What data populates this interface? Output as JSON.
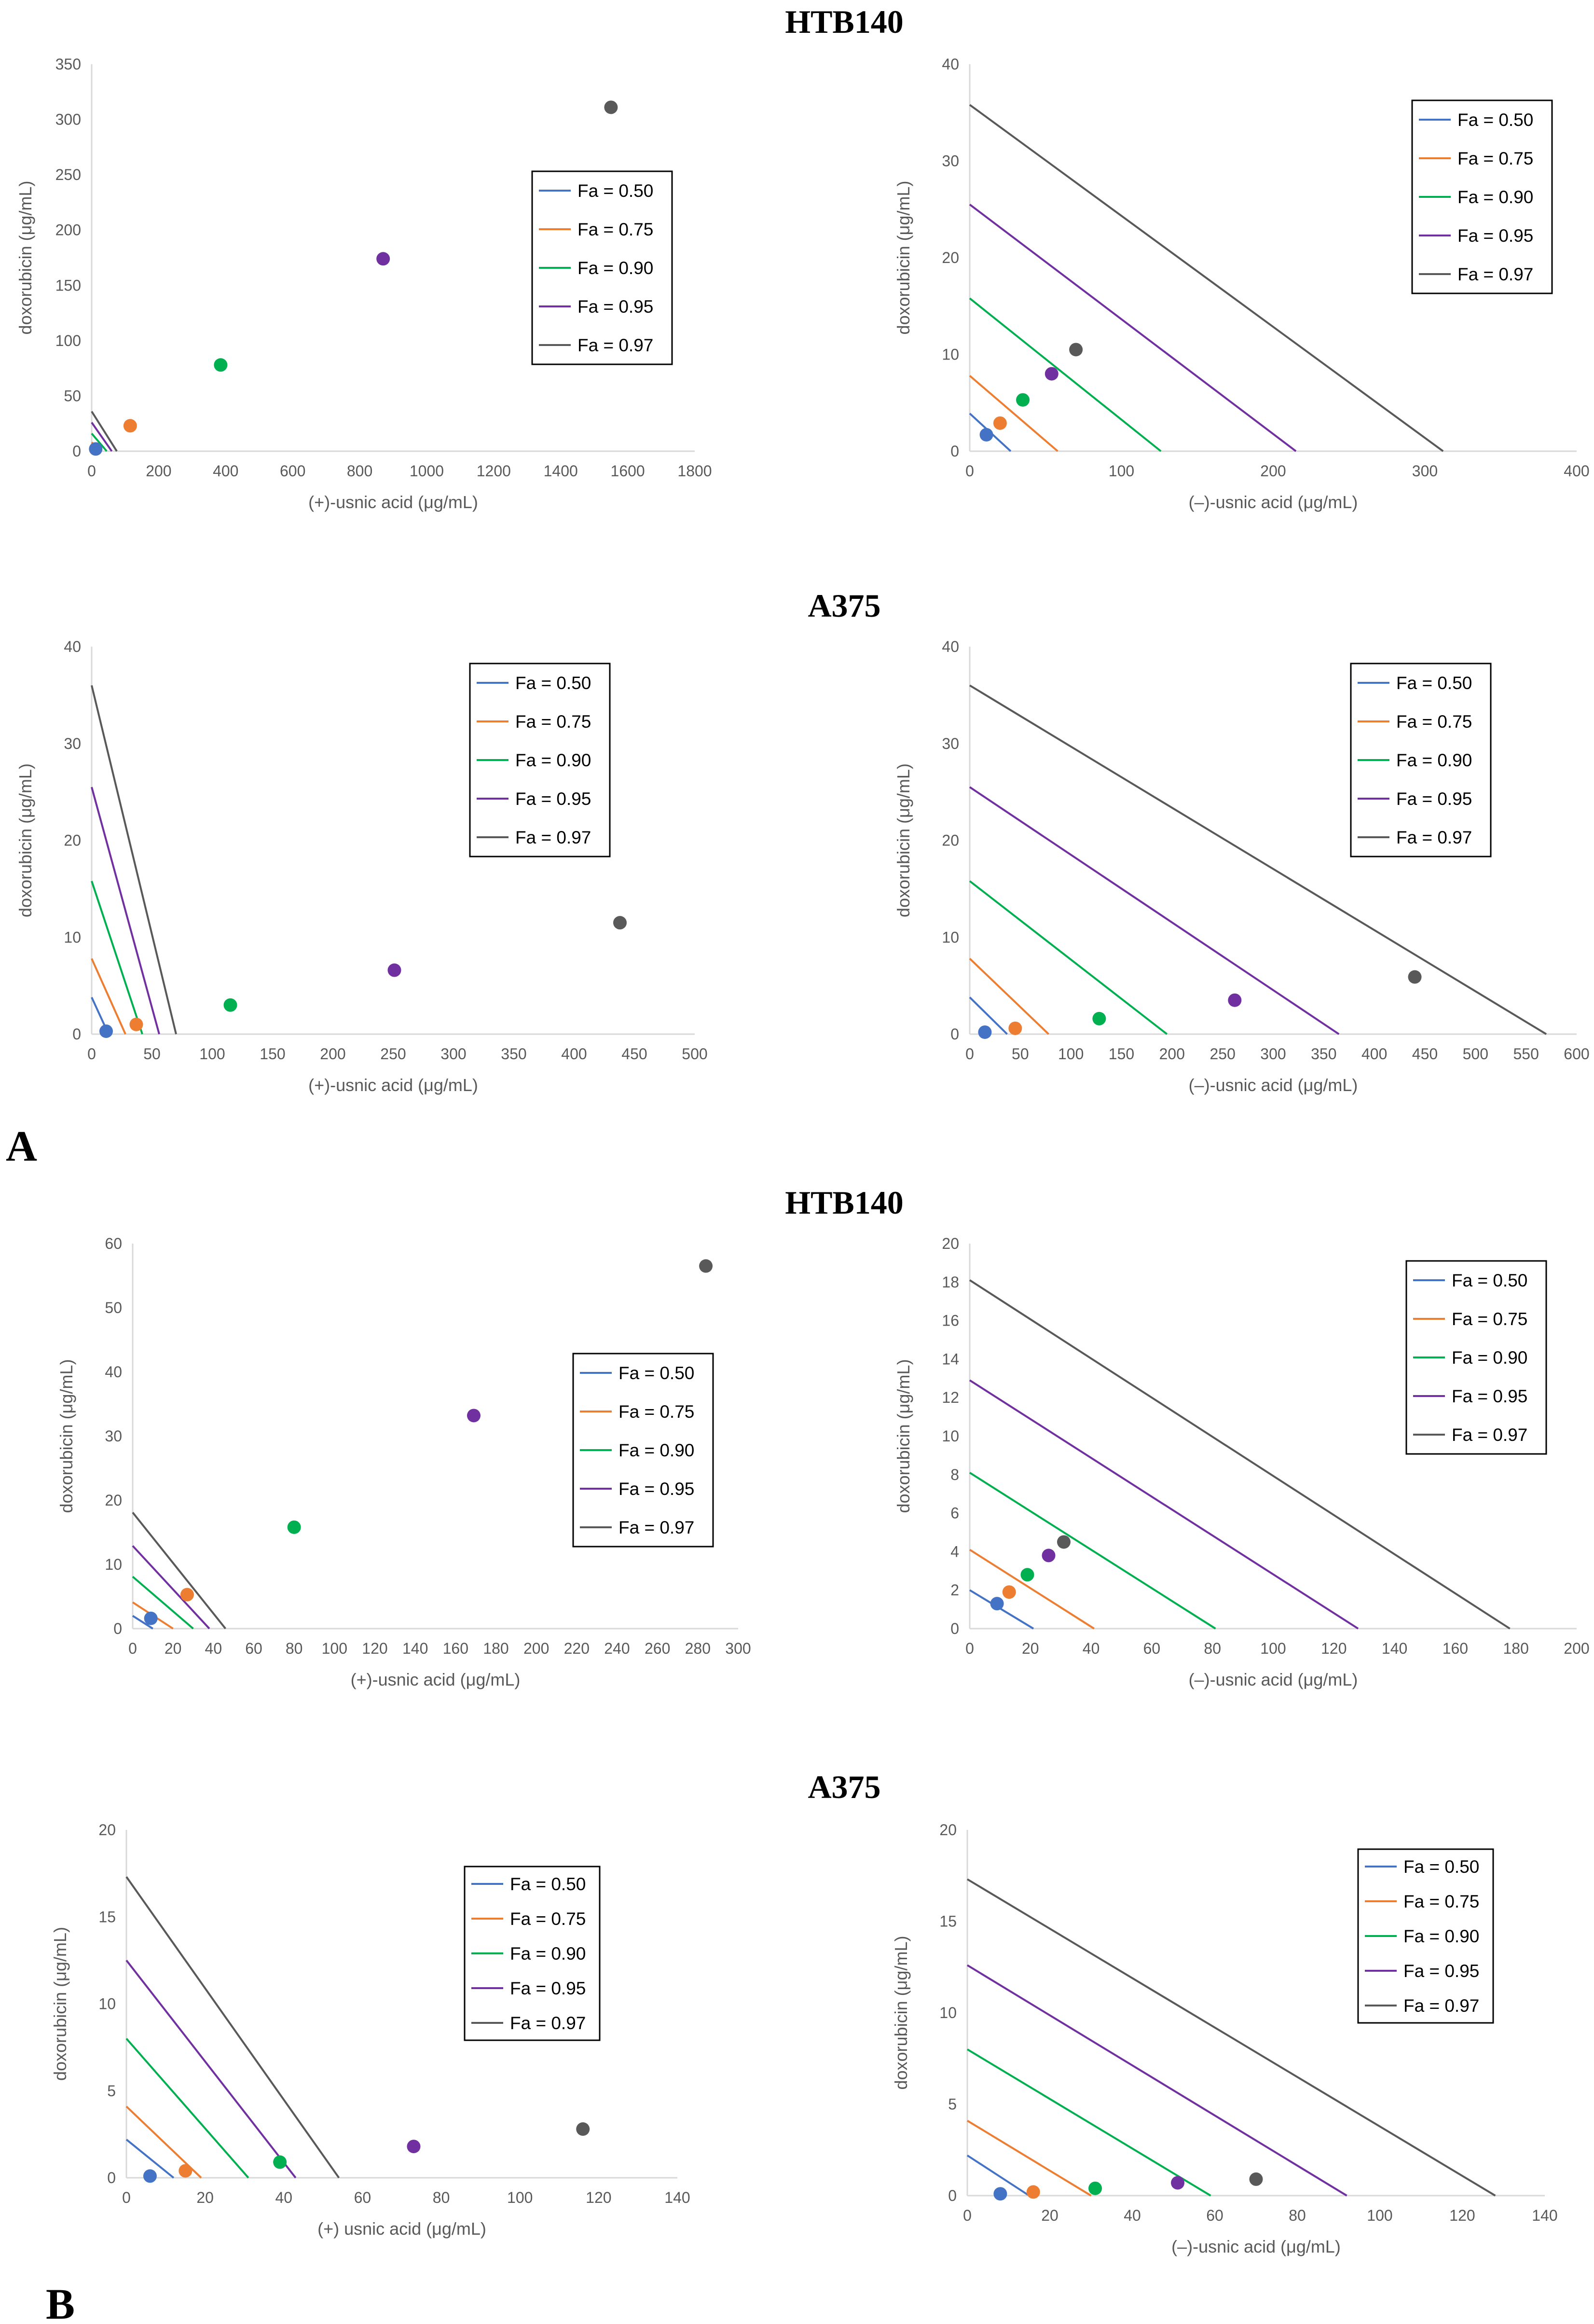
{
  "figure": {
    "titles": [
      "HTB140",
      "A375",
      "HTB140",
      "A375"
    ],
    "panel_labels": [
      "A",
      "B"
    ],
    "ylabel": "doxorubicin (μg/mL)"
  },
  "legend_labels": [
    "Fa = 0.50",
    "Fa = 0.75",
    "Fa = 0.90",
    "Fa = 0.95",
    "Fa = 0.97"
  ],
  "colors": {
    "fa050": "#4472C4",
    "fa075": "#ED7D31",
    "fa090": "#00B050",
    "fa095": "#7030A0",
    "fa097": "#595959",
    "axis": "#D9D9D9",
    "text": "#595959"
  },
  "chart_data": [
    {
      "type": "scatter",
      "title": "HTB140",
      "xlabel": "(+)-usnic acid (μg/mL)",
      "ylabel": "doxorubicin (μg/mL)",
      "xlim": [
        0,
        1800
      ],
      "ylim": [
        0,
        350
      ],
      "xticks": [
        0,
        200,
        400,
        600,
        800,
        1000,
        1200,
        1400,
        1600,
        1800
      ],
      "yticks": [
        0,
        50,
        100,
        150,
        200,
        250,
        300,
        350
      ],
      "legend": "center-right",
      "series": [
        {
          "name": "Fa = 0.50",
          "line": [
            [
              0,
              4
            ],
            [
              20,
              0
            ]
          ],
          "point": [
            12,
            2
          ]
        },
        {
          "name": "Fa = 0.75",
          "line": [
            [
              0,
              8
            ],
            [
              30,
              0
            ]
          ],
          "point": [
            115,
            23
          ]
        },
        {
          "name": "Fa = 0.90",
          "line": [
            [
              0,
              16
            ],
            [
              45,
              0
            ]
          ],
          "point": [
            385,
            78
          ]
        },
        {
          "name": "Fa = 0.95",
          "line": [
            [
              0,
              26
            ],
            [
              60,
              0
            ]
          ],
          "point": [
            870,
            174
          ]
        },
        {
          "name": "Fa = 0.97",
          "line": [
            [
              0,
              36
            ],
            [
              75,
              0
            ]
          ],
          "point": [
            1550,
            311
          ]
        }
      ]
    },
    {
      "type": "scatter",
      "title": "HTB140",
      "xlabel": "(–)-usnic acid (μg/mL)",
      "ylabel": "doxorubicin (μg/mL)",
      "xlim": [
        0,
        400
      ],
      "ylim": [
        0,
        40
      ],
      "xticks": [
        0,
        100,
        200,
        300,
        400
      ],
      "yticks": [
        0,
        10,
        20,
        30,
        40
      ],
      "legend": "top-right",
      "series": [
        {
          "name": "Fa = 0.50",
          "line": [
            [
              0,
              3.9
            ],
            [
              27,
              0
            ]
          ],
          "point": [
            11,
            1.7
          ]
        },
        {
          "name": "Fa = 0.75",
          "line": [
            [
              0,
              7.8
            ],
            [
              58,
              0
            ]
          ],
          "point": [
            20,
            2.9
          ]
        },
        {
          "name": "Fa = 0.90",
          "line": [
            [
              0,
              15.8
            ],
            [
              126,
              0
            ]
          ],
          "point": [
            35,
            5.3
          ]
        },
        {
          "name": "Fa = 0.95",
          "line": [
            [
              0,
              25.5
            ],
            [
              215,
              0
            ]
          ],
          "point": [
            54,
            8
          ]
        },
        {
          "name": "Fa = 0.97",
          "line": [
            [
              0,
              35.8
            ],
            [
              312,
              0
            ]
          ],
          "point": [
            70,
            10.5
          ]
        }
      ]
    },
    {
      "type": "scatter",
      "title": "A375",
      "xlabel": "(+)-usnic acid (μg/mL)",
      "ylabel": "doxorubicin (μg/mL)",
      "xlim": [
        0,
        500
      ],
      "ylim": [
        0,
        40
      ],
      "xticks": [
        0,
        50,
        100,
        150,
        200,
        250,
        300,
        350,
        400,
        450,
        500
      ],
      "yticks": [
        0,
        10,
        20,
        30,
        40
      ],
      "legend": "top-right",
      "series": [
        {
          "name": "Fa = 0.50",
          "line": [
            [
              0,
              3.8
            ],
            [
              14,
              0
            ]
          ],
          "point": [
            12,
            0.3
          ]
        },
        {
          "name": "Fa = 0.75",
          "line": [
            [
              0,
              7.8
            ],
            [
              28,
              0
            ]
          ],
          "point": [
            37,
            1.0
          ]
        },
        {
          "name": "Fa = 0.90",
          "line": [
            [
              0,
              15.8
            ],
            [
              42,
              0
            ]
          ],
          "point": [
            115,
            3.0
          ]
        },
        {
          "name": "Fa = 0.95",
          "line": [
            [
              0,
              25.5
            ],
            [
              56,
              0
            ]
          ],
          "point": [
            251,
            6.6
          ]
        },
        {
          "name": "Fa = 0.97",
          "line": [
            [
              0,
              36
            ],
            [
              70,
              0
            ]
          ],
          "point": [
            438,
            11.5
          ]
        }
      ]
    },
    {
      "type": "scatter",
      "title": "A375",
      "xlabel": "(–)-usnic acid (μg/mL)",
      "ylabel": "doxorubicin (μg/mL)",
      "xlim": [
        0,
        600
      ],
      "ylim": [
        0,
        40
      ],
      "xticks": [
        0,
        50,
        100,
        150,
        200,
        250,
        300,
        350,
        400,
        450,
        500,
        550,
        600
      ],
      "yticks": [
        0,
        10,
        20,
        30,
        40
      ],
      "legend": "top-right",
      "series": [
        {
          "name": "Fa = 0.50",
          "line": [
            [
              0,
              3.8
            ],
            [
              37,
              0
            ]
          ],
          "point": [
            15,
            0.2
          ]
        },
        {
          "name": "Fa = 0.75",
          "line": [
            [
              0,
              7.8
            ],
            [
              78,
              0
            ]
          ],
          "point": [
            45,
            0.6
          ]
        },
        {
          "name": "Fa = 0.90",
          "line": [
            [
              0,
              15.8
            ],
            [
              195,
              0
            ]
          ],
          "point": [
            128,
            1.6
          ]
        },
        {
          "name": "Fa = 0.95",
          "line": [
            [
              0,
              25.5
            ],
            [
              365,
              0
            ]
          ],
          "point": [
            262,
            3.5
          ]
        },
        {
          "name": "Fa = 0.97",
          "line": [
            [
              0,
              36
            ],
            [
              570,
              0
            ]
          ],
          "point": [
            440,
            5.9
          ]
        }
      ]
    },
    {
      "type": "scatter",
      "title": "HTB140",
      "xlabel": "(+)-usnic acid (μg/mL)",
      "ylabel": "doxorubicin (μg/mL)",
      "xlim": [
        0,
        300
      ],
      "ylim": [
        0,
        60
      ],
      "xticks": [
        0,
        20,
        40,
        60,
        80,
        100,
        120,
        140,
        160,
        180,
        200,
        220,
        240,
        260,
        280,
        300
      ],
      "yticks": [
        0,
        10,
        20,
        30,
        40,
        50,
        60
      ],
      "legend": "center-right",
      "series": [
        {
          "name": "Fa = 0.50",
          "line": [
            [
              0,
              2
            ],
            [
              10,
              0
            ]
          ],
          "point": [
            9,
            1.6
          ]
        },
        {
          "name": "Fa = 0.75",
          "line": [
            [
              0,
              4.1
            ],
            [
              20,
              0
            ]
          ],
          "point": [
            27,
            5.3
          ]
        },
        {
          "name": "Fa = 0.90",
          "line": [
            [
              0,
              8.1
            ],
            [
              30,
              0
            ]
          ],
          "point": [
            80,
            15.8
          ]
        },
        {
          "name": "Fa = 0.95",
          "line": [
            [
              0,
              12.9
            ],
            [
              38,
              0
            ]
          ],
          "point": [
            169,
            33.2
          ]
        },
        {
          "name": "Fa = 0.97",
          "line": [
            [
              0,
              18.1
            ],
            [
              46,
              0
            ]
          ],
          "point": [
            284,
            56.5
          ]
        }
      ]
    },
    {
      "type": "scatter",
      "title": "HTB140",
      "xlabel": "(–)-usnic acid (μg/mL)",
      "ylabel": "doxorubicin (μg/mL)",
      "xlim": [
        0,
        200
      ],
      "ylim": [
        0,
        20
      ],
      "xticks": [
        0,
        20,
        40,
        60,
        80,
        100,
        120,
        140,
        160,
        180,
        200
      ],
      "yticks": [
        0,
        2,
        4,
        6,
        8,
        10,
        12,
        14,
        16,
        18,
        20
      ],
      "legend": "top-right",
      "series": [
        {
          "name": "Fa = 0.50",
          "line": [
            [
              0,
              2
            ],
            [
              21,
              0
            ]
          ],
          "point": [
            9,
            1.3
          ]
        },
        {
          "name": "Fa = 0.75",
          "line": [
            [
              0,
              4.1
            ],
            [
              41,
              0
            ]
          ],
          "point": [
            13,
            1.9
          ]
        },
        {
          "name": "Fa = 0.90",
          "line": [
            [
              0,
              8.1
            ],
            [
              81,
              0
            ]
          ],
          "point": [
            19,
            2.8
          ]
        },
        {
          "name": "Fa = 0.95",
          "line": [
            [
              0,
              12.9
            ],
            [
              128,
              0
            ]
          ],
          "point": [
            26,
            3.8
          ]
        },
        {
          "name": "Fa = 0.97",
          "line": [
            [
              0,
              18.1
            ],
            [
              178,
              0
            ]
          ],
          "point": [
            31,
            4.5
          ]
        }
      ]
    },
    {
      "type": "scatter",
      "title": "A375",
      "xlabel": "(+) usnic acid (μg/mL)",
      "ylabel": "doxorubicin (μg/mL)",
      "xlim": [
        0,
        140
      ],
      "ylim": [
        0,
        20
      ],
      "xticks": [
        0,
        20,
        40,
        60,
        80,
        100,
        120,
        140
      ],
      "yticks": [
        0,
        5,
        10,
        15,
        20
      ],
      "legend": "top-right",
      "series": [
        {
          "name": "Fa = 0.50",
          "line": [
            [
              0,
              2.2
            ],
            [
              12,
              0
            ]
          ],
          "point": [
            6,
            0.1
          ]
        },
        {
          "name": "Fa = 0.75",
          "line": [
            [
              0,
              4.1
            ],
            [
              19,
              0
            ]
          ],
          "point": [
            15,
            0.4
          ]
        },
        {
          "name": "Fa = 0.90",
          "line": [
            [
              0,
              8
            ],
            [
              31,
              0
            ]
          ],
          "point": [
            39,
            0.9
          ]
        },
        {
          "name": "Fa = 0.95",
          "line": [
            [
              0,
              12.5
            ],
            [
              43,
              0
            ]
          ],
          "point": [
            73,
            1.8
          ]
        },
        {
          "name": "Fa = 0.97",
          "line": [
            [
              0,
              17.3
            ],
            [
              54,
              0
            ]
          ],
          "point": [
            116,
            2.8
          ]
        }
      ]
    },
    {
      "type": "scatter",
      "title": "A375",
      "xlabel": "(–)-usnic acid (μg/mL)",
      "ylabel": "doxorubicin (μg/mL)",
      "xlim": [
        0,
        140
      ],
      "ylim": [
        0,
        20
      ],
      "xticks": [
        0,
        20,
        40,
        60,
        80,
        100,
        120,
        140
      ],
      "yticks": [
        0,
        5,
        10,
        15,
        20
      ],
      "legend": "top-right",
      "series": [
        {
          "name": "Fa = 0.50",
          "line": [
            [
              0,
              2.2
            ],
            [
              15,
              0
            ]
          ],
          "point": [
            8,
            0.1
          ]
        },
        {
          "name": "Fa = 0.75",
          "line": [
            [
              0,
              4.1
            ],
            [
              30,
              0
            ]
          ],
          "point": [
            16,
            0.2
          ]
        },
        {
          "name": "Fa = 0.90",
          "line": [
            [
              0,
              8
            ],
            [
              59,
              0
            ]
          ],
          "point": [
            31,
            0.4
          ]
        },
        {
          "name": "Fa = 0.95",
          "line": [
            [
              0,
              12.6
            ],
            [
              92,
              0
            ]
          ],
          "point": [
            51,
            0.7
          ]
        },
        {
          "name": "Fa = 0.97",
          "line": [
            [
              0,
              17.3
            ],
            [
              128,
              0
            ]
          ],
          "point": [
            70,
            0.9
          ]
        }
      ]
    }
  ]
}
